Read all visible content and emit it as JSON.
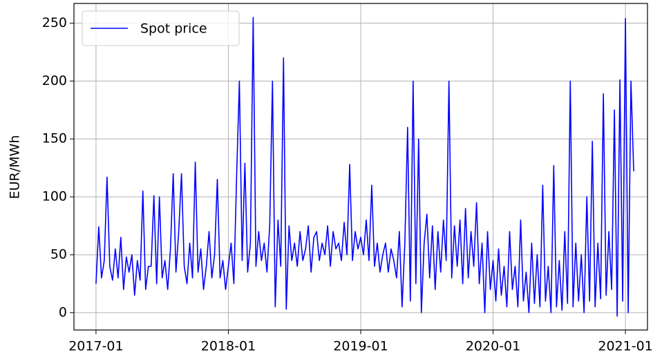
{
  "chart_data": {
    "type": "line",
    "ylabel": "EUR/MWh",
    "x": [
      "2017-01",
      "2017-01",
      "2017-01",
      "2017-01",
      "2017-02",
      "2017-02",
      "2017-02",
      "2017-02",
      "2017-03",
      "2017-03",
      "2017-03",
      "2017-03",
      "2017-04",
      "2017-04",
      "2017-04",
      "2017-04",
      "2017-05",
      "2017-05",
      "2017-05",
      "2017-05",
      "2017-06",
      "2017-06",
      "2017-06",
      "2017-06",
      "2017-07",
      "2017-07",
      "2017-07",
      "2017-07",
      "2017-08",
      "2017-08",
      "2017-08",
      "2017-08",
      "2017-09",
      "2017-09",
      "2017-09",
      "2017-09",
      "2017-10",
      "2017-10",
      "2017-10",
      "2017-10",
      "2017-11",
      "2017-11",
      "2017-11",
      "2017-11",
      "2017-12",
      "2017-12",
      "2017-12",
      "2017-12",
      "2018-01",
      "2018-01",
      "2018-01",
      "2018-01",
      "2018-02",
      "2018-02",
      "2018-02",
      "2018-02",
      "2018-03",
      "2018-03",
      "2018-03",
      "2018-03",
      "2018-04",
      "2018-04",
      "2018-04",
      "2018-04",
      "2018-05",
      "2018-05",
      "2018-05",
      "2018-05",
      "2018-06",
      "2018-06",
      "2018-06",
      "2018-06",
      "2018-07",
      "2018-07",
      "2018-07",
      "2018-07",
      "2018-08",
      "2018-08",
      "2018-08",
      "2018-08",
      "2018-09",
      "2018-09",
      "2018-09",
      "2018-09",
      "2018-10",
      "2018-10",
      "2018-10",
      "2018-10",
      "2018-11",
      "2018-11",
      "2018-11",
      "2018-11",
      "2018-12",
      "2018-12",
      "2018-12",
      "2018-12",
      "2019-01",
      "2019-01",
      "2019-01",
      "2019-01",
      "2019-02",
      "2019-02",
      "2019-02",
      "2019-02",
      "2019-03",
      "2019-03",
      "2019-03",
      "2019-03",
      "2019-04",
      "2019-04",
      "2019-04",
      "2019-04",
      "2019-05",
      "2019-05",
      "2019-05",
      "2019-05",
      "2019-06",
      "2019-06",
      "2019-06",
      "2019-06",
      "2019-07",
      "2019-07",
      "2019-07",
      "2019-07",
      "2019-08",
      "2019-08",
      "2019-08",
      "2019-08",
      "2019-09",
      "2019-09",
      "2019-09",
      "2019-09",
      "2019-10",
      "2019-10",
      "2019-10",
      "2019-10",
      "2019-11",
      "2019-11",
      "2019-11",
      "2019-11",
      "2019-12",
      "2019-12",
      "2019-12",
      "2019-12",
      "2020-01",
      "2020-01",
      "2020-01",
      "2020-01",
      "2020-02",
      "2020-02",
      "2020-02",
      "2020-02",
      "2020-03",
      "2020-03",
      "2020-03",
      "2020-03",
      "2020-04",
      "2020-04",
      "2020-04",
      "2020-04",
      "2020-05",
      "2020-05",
      "2020-05",
      "2020-05",
      "2020-06",
      "2020-06",
      "2020-06",
      "2020-06",
      "2020-07",
      "2020-07",
      "2020-07",
      "2020-07",
      "2020-08",
      "2020-08",
      "2020-08",
      "2020-08",
      "2020-09",
      "2020-09",
      "2020-09",
      "2020-09",
      "2020-10",
      "2020-10",
      "2020-10",
      "2020-10",
      "2020-11",
      "2020-11",
      "2020-11",
      "2020-11",
      "2020-12",
      "2020-12",
      "2020-12",
      "2020-12",
      "2021-01",
      "2021-01",
      "2021-01",
      "2021-01"
    ],
    "series": [
      {
        "name": "Spot price",
        "color": "#0000ff",
        "values": [
          25,
          74,
          30,
          45,
          117,
          40,
          28,
          55,
          30,
          65,
          20,
          48,
          35,
          50,
          15,
          45,
          28,
          105,
          20,
          40,
          40,
          101,
          25,
          100,
          30,
          45,
          20,
          55,
          120,
          35,
          70,
          120,
          40,
          25,
          60,
          30,
          130,
          35,
          55,
          20,
          40,
          70,
          30,
          50,
          115,
          30,
          45,
          20,
          40,
          60,
          25,
          118,
          200,
          45,
          129,
          35,
          60,
          255,
          40,
          70,
          45,
          60,
          35,
          75,
          200,
          5,
          80,
          40,
          220,
          3,
          75,
          45,
          60,
          40,
          70,
          45,
          55,
          75,
          35,
          65,
          70,
          45,
          60,
          50,
          75,
          40,
          70,
          55,
          60,
          45,
          78,
          50,
          128,
          45,
          70,
          55,
          65,
          50,
          80,
          45,
          110,
          40,
          60,
          35,
          50,
          60,
          35,
          55,
          45,
          30,
          70,
          5,
          60,
          160,
          10,
          200,
          25,
          150,
          0,
          60,
          85,
          30,
          75,
          20,
          70,
          35,
          80,
          45,
          200,
          30,
          75,
          40,
          80,
          25,
          90,
          30,
          70,
          40,
          95,
          25,
          60,
          0,
          70,
          20,
          45,
          10,
          55,
          15,
          40,
          5,
          70,
          20,
          40,
          5,
          80,
          10,
          35,
          0,
          60,
          8,
          50,
          5,
          110,
          10,
          40,
          0,
          127,
          5,
          45,
          2,
          70,
          8,
          200,
          5,
          60,
          10,
          50,
          0,
          100,
          10,
          148,
          5,
          60,
          12,
          189,
          15,
          70,
          20,
          175,
          -3,
          201,
          10,
          254,
          0,
          200,
          122
        ]
      }
    ],
    "xlim": [
      "2016-11",
      "2021-03"
    ],
    "xticks": [
      "2017-01",
      "2018-01",
      "2019-01",
      "2020-01",
      "2021-01"
    ],
    "ylim": [
      -15,
      267
    ],
    "yticks": [
      0,
      50,
      100,
      150,
      200,
      250
    ],
    "grid": true,
    "legend": "upper left"
  }
}
